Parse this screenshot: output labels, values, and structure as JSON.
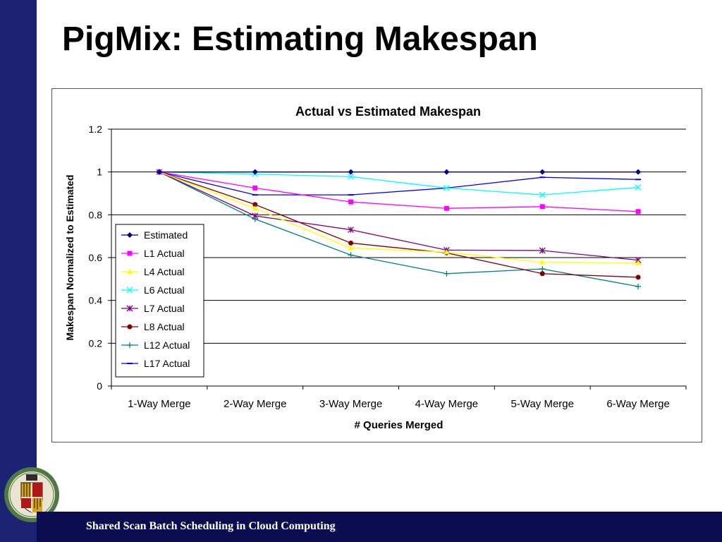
{
  "slide": {
    "title": "PigMix: Estimating Makespan",
    "footer": "Shared Scan Batch Scheduling in Cloud Computing"
  },
  "colors": {
    "left_bar": "#1c2372",
    "footer_bar": "#0c0c50"
  },
  "chart_data": {
    "type": "line",
    "title": "Actual vs Estimated Makespan",
    "xlabel": "# Queries Merged",
    "ylabel": "Makespan Normalized to Estimated",
    "categories": [
      "1-Way Merge",
      "2-Way Merge",
      "3-Way Merge",
      "4-Way Merge",
      "5-Way Merge",
      "6-Way Merge"
    ],
    "ylim": [
      0,
      1.2
    ],
    "yticks": [
      0,
      0.2,
      0.4,
      0.6,
      0.8,
      1,
      1.2
    ],
    "ytick_labels": [
      "0",
      "0.2",
      "0.4",
      "0.6",
      "0.8",
      "1",
      "1.2"
    ],
    "grid": "horizontal",
    "legend_position": "left-inside",
    "series": [
      {
        "name": "Estimated",
        "color": "#000080",
        "marker": "diamond",
        "values": [
          1.0,
          1.0,
          1.0,
          1.0,
          1.0,
          1.0
        ]
      },
      {
        "name": "L1 Actual",
        "color": "#ff00ff",
        "marker": "square",
        "values": [
          1.0,
          0.925,
          0.86,
          0.83,
          0.838,
          0.815
        ]
      },
      {
        "name": "L4 Actual",
        "color": "#ffff00",
        "marker": "triangle",
        "values": [
          1.0,
          0.83,
          0.645,
          0.625,
          0.578,
          0.575
        ]
      },
      {
        "name": "L6 Actual",
        "color": "#00ffff",
        "marker": "x",
        "values": [
          1.0,
          0.99,
          0.978,
          0.925,
          0.893,
          0.928
        ]
      },
      {
        "name": "L7 Actual",
        "color": "#800080",
        "marker": "star",
        "values": [
          1.0,
          0.795,
          0.73,
          0.635,
          0.633,
          0.588
        ]
      },
      {
        "name": "L8 Actual",
        "color": "#800000",
        "marker": "circle",
        "values": [
          1.0,
          0.848,
          0.668,
          0.622,
          0.525,
          0.508
        ]
      },
      {
        "name": "L12 Actual",
        "color": "#008080",
        "marker": "plus",
        "values": [
          1.0,
          0.78,
          0.612,
          0.525,
          0.547,
          0.465
        ]
      },
      {
        "name": "L17 Actual",
        "color": "#0000ff",
        "marker": "dash",
        "values": [
          1.0,
          0.893,
          0.893,
          0.925,
          0.975,
          0.965
        ]
      }
    ]
  }
}
